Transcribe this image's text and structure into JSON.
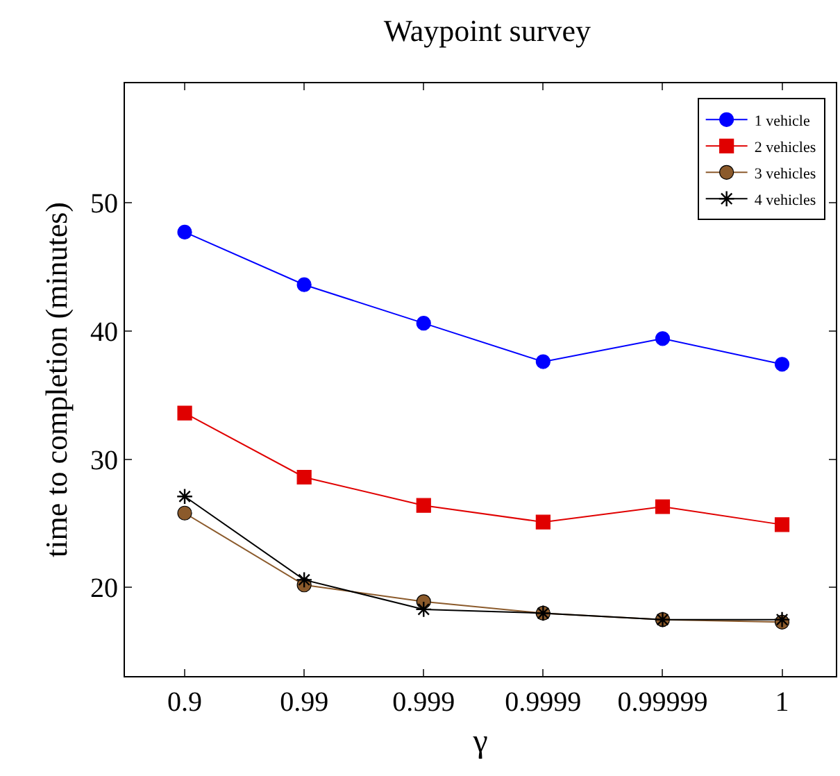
{
  "chart_data": {
    "type": "line",
    "title": "Waypoint survey",
    "xlabel": "γ",
    "ylabel": "time to completion (minutes)",
    "categories": [
      "0.9",
      "0.99",
      "0.999",
      "0.9999",
      "0.99999",
      "1"
    ],
    "series": [
      {
        "name": "1 vehicle",
        "color": "#0000ff",
        "marker": "circle",
        "values": [
          47.7,
          43.6,
          40.6,
          37.6,
          39.4,
          37.4
        ]
      },
      {
        "name": "2 vehicles",
        "color": "#e00000",
        "marker": "square",
        "values": [
          33.6,
          28.6,
          26.4,
          25.1,
          26.3,
          24.9
        ]
      },
      {
        "name": "3 vehicles",
        "color": "#8b5a2b",
        "marker": "circle",
        "values": [
          25.8,
          20.2,
          18.9,
          18.0,
          17.5,
          17.3
        ]
      },
      {
        "name": "4 vehicles",
        "color": "#000000",
        "marker": "cross",
        "values": [
          27.1,
          20.6,
          18.3,
          18.0,
          17.5,
          17.5
        ]
      }
    ],
    "ylim": [
      13.1,
      59.3
    ],
    "yticks": [
      20,
      30,
      40,
      50
    ],
    "grid": false,
    "legend": "top right",
    "line_style": "solid"
  }
}
